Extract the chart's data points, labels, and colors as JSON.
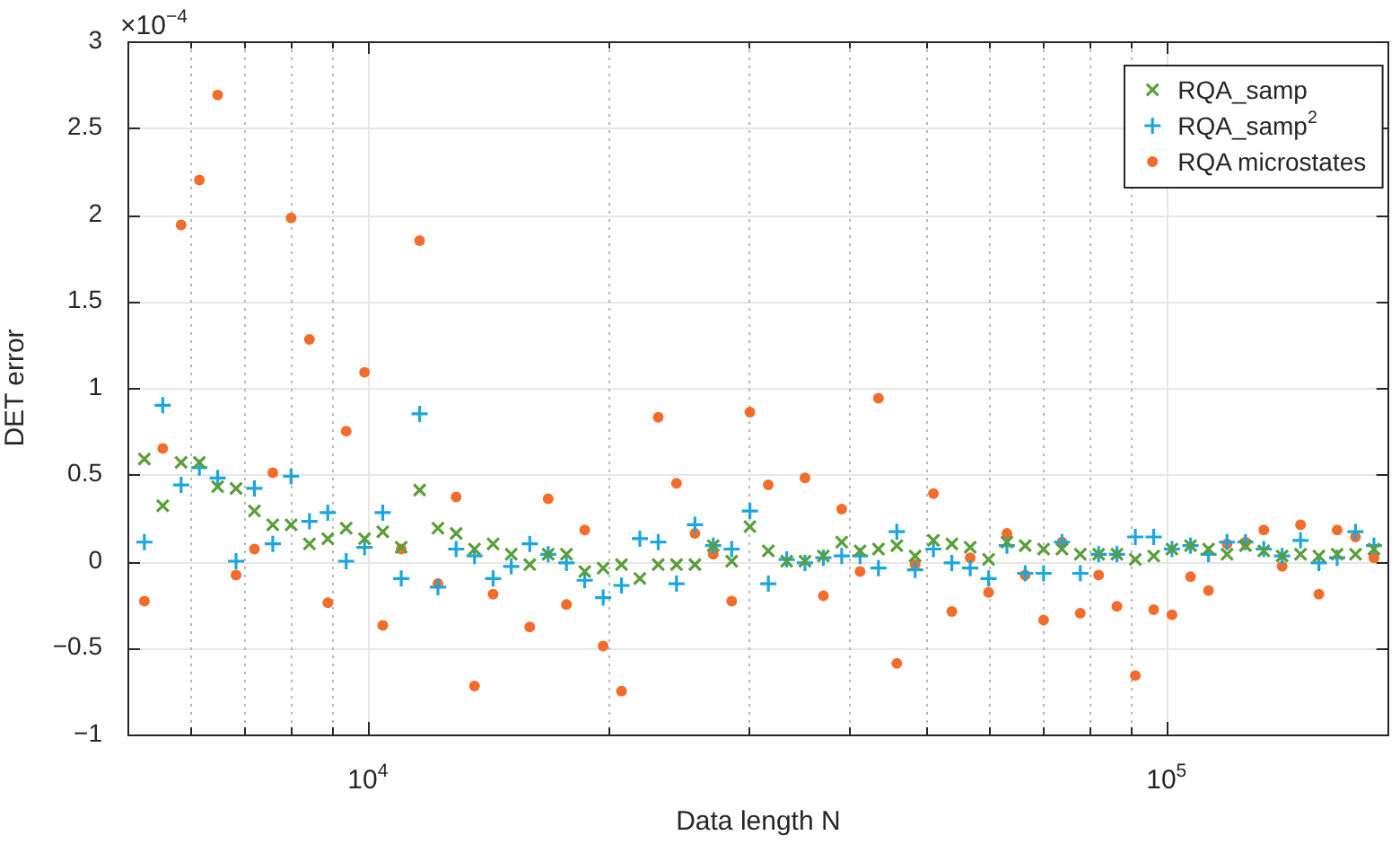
{
  "chart_data": {
    "type": "scatter",
    "xlabel": "Data length N",
    "ylabel": "DET error",
    "annotations": [
      "×10$^{−4}$"
    ],
    "x": [
      5250,
      5536,
      5837,
      6152,
      6486,
      6839,
      7211,
      7603,
      8015,
      8451,
      8910,
      9395,
      9906,
      10440,
      11010,
      11610,
      12240,
      12900,
      13600,
      14350,
      15120,
      15950,
      16820,
      17730,
      18690,
      19710,
      20780,
      21910,
      23100,
      24350,
      25680,
      27070,
      28550,
      30090,
      31730,
      33460,
      35270,
      37190,
      39210,
      41340,
      43590,
      45960,
      48450,
      51080,
      53860,
      56790,
      59880,
      63130,
      66550,
      70170,
      73990,
      78010,
      82250,
      86700,
      91420,
      96390,
      101600,
      107200,
      112900,
      119100,
      125600,
      132400,
      139600,
      147200,
      155200,
      163600,
      172500,
      181900
    ],
    "series": [
      {
        "name": "RQA_samp",
        "color": "#5a9e3a",
        "marker": "cross",
        "values": [
          0.59,
          0.32,
          0.57,
          0.57,
          0.43,
          0.42,
          0.29,
          0.21,
          0.21,
          0.1,
          0.13,
          0.19,
          0.13,
          0.17,
          0.08,
          0.41,
          0.19,
          0.16,
          0.07,
          0.1,
          0.04,
          -0.02,
          0.04,
          0.04,
          -0.06,
          -0.04,
          -0.02,
          -0.1,
          -0.02,
          -0.02,
          -0.02,
          0.09,
          0.0,
          0.2,
          0.06,
          0.0,
          0.0,
          0.03,
          0.11,
          0.06,
          0.07,
          0.09,
          0.03,
          0.12,
          0.1,
          0.08,
          0.01,
          0.11,
          0.09,
          0.07,
          0.07,
          0.04,
          0.04,
          0.04,
          0.01,
          0.03,
          0.07,
          0.09,
          0.07,
          0.04,
          0.09,
          0.06,
          0.03,
          0.04,
          0.03,
          0.04,
          0.04,
          0.07
        ]
      },
      {
        "name": "RQA_samp$^{2}$",
        "color": "#1ba6e0",
        "marker": "plus",
        "values": [
          0.11,
          0.9,
          0.44,
          0.54,
          0.48,
          0.0,
          0.42,
          0.1,
          0.49,
          0.23,
          0.28,
          0.0,
          0.08,
          0.28,
          -0.1,
          0.85,
          -0.15,
          0.07,
          0.03,
          -0.1,
          -0.03,
          0.1,
          0.04,
          -0.01,
          -0.11,
          -0.21,
          -0.14,
          0.13,
          0.11,
          -0.13,
          0.21,
          0.09,
          0.07,
          0.29,
          -0.13,
          0.01,
          -0.01,
          0.02,
          0.03,
          0.03,
          -0.04,
          0.17,
          -0.05,
          0.07,
          -0.01,
          -0.04,
          -0.1,
          0.09,
          -0.07,
          -0.07,
          0.11,
          -0.07,
          0.04,
          0.04,
          0.14,
          0.14,
          0.07,
          0.09,
          0.04,
          0.11,
          0.11,
          0.07,
          0.03,
          0.12,
          -0.01,
          0.02,
          0.17,
          0.09
        ]
      },
      {
        "name": "RQA microstates",
        "color": "#f26d2b",
        "marker": "circle",
        "values": [
          -0.23,
          0.65,
          1.94,
          2.2,
          2.69,
          -0.08,
          0.07,
          0.51,
          1.98,
          1.28,
          -0.24,
          0.75,
          1.09,
          -0.37,
          0.07,
          1.85,
          -0.13,
          0.37,
          -0.72,
          -0.19,
          null,
          -0.38,
          0.36,
          -0.25,
          0.18,
          -0.49,
          -0.75,
          null,
          0.83,
          0.45,
          0.16,
          0.04,
          -0.23,
          0.86,
          0.44,
          null,
          0.48,
          -0.2,
          0.3,
          -0.06,
          0.94,
          -0.59,
          -0.02,
          0.39,
          -0.29,
          0.02,
          -0.18,
          0.16,
          -0.08,
          -0.34,
          0.11,
          -0.3,
          -0.08,
          -0.26,
          -0.66,
          -0.28,
          -0.31,
          -0.09,
          -0.17,
          0.1,
          0.11,
          0.18,
          -0.03,
          0.21,
          -0.19,
          0.18,
          0.14,
          0.02
        ]
      }
    ],
    "log": "x",
    "xlim": [
      5000,
      190000
    ],
    "xticks": [
      {
        "value": 6000,
        "label": null
      },
      {
        "value": 7000,
        "label": null
      },
      {
        "value": 8000,
        "label": null
      },
      {
        "value": 9000,
        "label": null
      },
      {
        "value": 10000,
        "label": "10$^{4}$"
      },
      {
        "value": 20000,
        "label": null
      },
      {
        "value": 30000,
        "label": null
      },
      {
        "value": 40000,
        "label": null
      },
      {
        "value": 50000,
        "label": null
      },
      {
        "value": 60000,
        "label": null
      },
      {
        "value": 70000,
        "label": null
      },
      {
        "value": 80000,
        "label": null
      },
      {
        "value": 90000,
        "label": null
      },
      {
        "value": 100000,
        "label": "10$^{5}$"
      }
    ],
    "ylim": [
      -1,
      3
    ],
    "yticks": [
      {
        "value": -1,
        "label": "−1"
      },
      {
        "value": -0.5,
        "label": "−0.5"
      },
      0,
      0.5,
      1,
      1.5,
      2,
      2.5,
      3
    ],
    "grid": true,
    "legend": "top right"
  }
}
